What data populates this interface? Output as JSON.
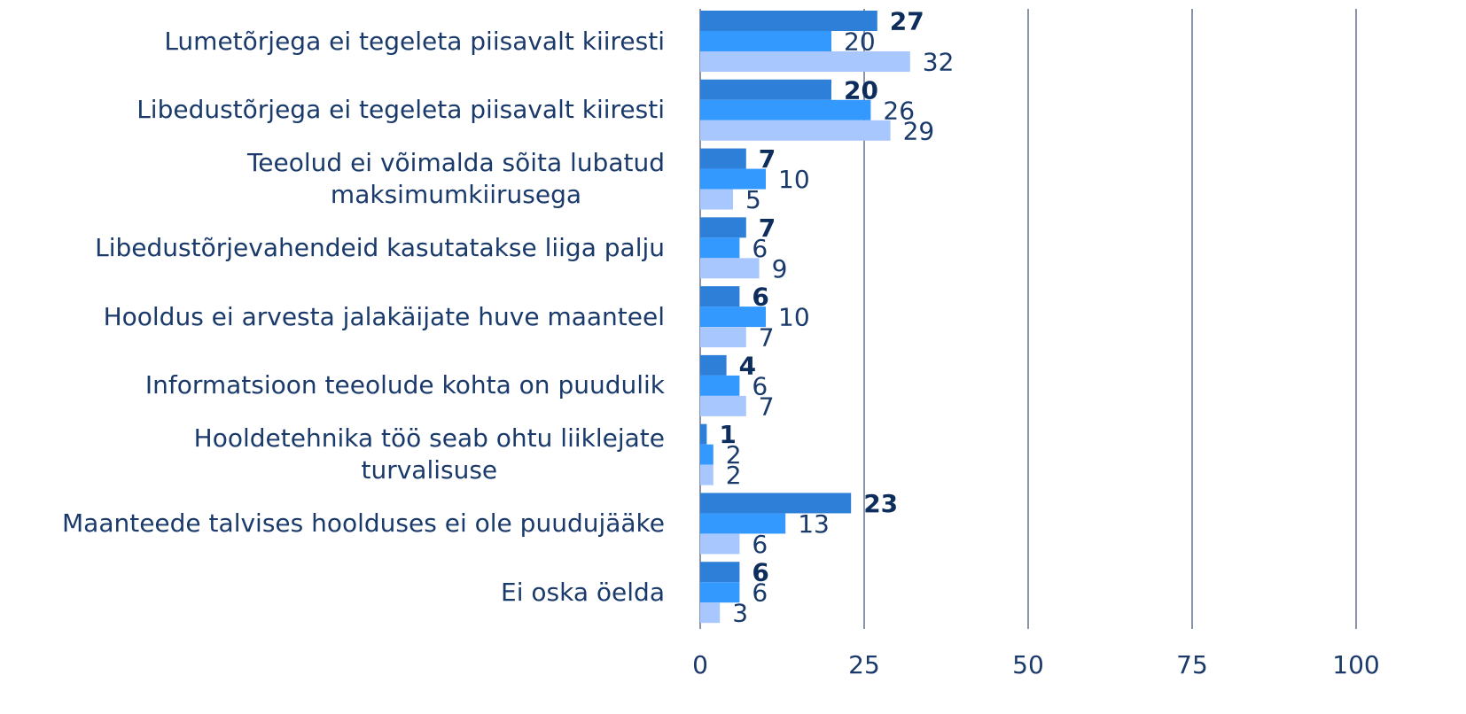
{
  "chart_data": {
    "type": "hbar",
    "categories": [
      "Lumetõrjega ei tegeleta piisavalt kiiresti",
      "Libedustõrjega ei tegeleta piisavalt kiiresti",
      "Teeolud ei võimalda sõita lubatud\nmaksimumkiirusega",
      "Libedustõrjevahendeid kasutatakse liiga palju",
      "Hooldus ei arvesta jalakäijate huve maanteel",
      "Informatsioon teeolude kohta on puudulik",
      "Hooldetehnika töö seab ohtu liiklejate\nturvalisuse",
      "Maanteede talvises hoolduses ei ole puudujääke",
      "Ei oska öelda"
    ],
    "series": [
      {
        "color": "#2d7fd8",
        "values": [
          27,
          20,
          7,
          7,
          6,
          4,
          1,
          23,
          6
        ]
      },
      {
        "color": "#3399ff",
        "values": [
          20,
          26,
          10,
          6,
          10,
          6,
          2,
          13,
          6
        ]
      },
      {
        "color": "#a9c7ff",
        "values": [
          32,
          29,
          5,
          9,
          7,
          7,
          2,
          6,
          3
        ]
      }
    ],
    "xlim": [
      0,
      100
    ],
    "xticks": [
      0,
      25,
      50,
      75,
      100
    ],
    "grid": true
  }
}
